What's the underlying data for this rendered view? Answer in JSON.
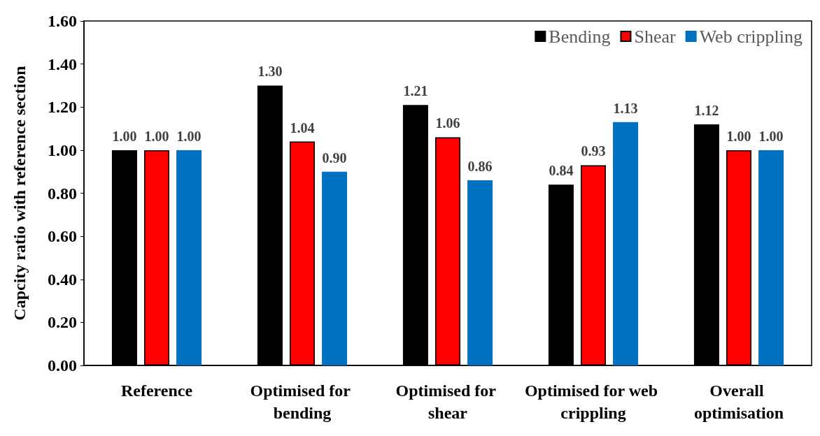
{
  "chart_data": {
    "type": "bar",
    "ylabel": "Capcity ratio with reference section",
    "categories": [
      "Reference",
      "Optimised for bending",
      "Optimised for shear",
      "Optimised for web crippling",
      "Overall optimisation"
    ],
    "series": [
      {
        "name": "Bending",
        "color": "#000000",
        "values": [
          1.0,
          1.3,
          1.21,
          0.84,
          1.12
        ],
        "value_labels": [
          "1.00",
          "1.30",
          "1.21",
          "0.84",
          "1.12"
        ]
      },
      {
        "name": "Shear",
        "color": "#ff0000",
        "values": [
          1.0,
          1.04,
          1.06,
          0.93,
          1.0
        ],
        "value_labels": [
          "1.00",
          "1.04",
          "1.06",
          "0.93",
          "1.00"
        ]
      },
      {
        "name": "Web crippling",
        "color": "#0070c0",
        "values": [
          1.0,
          0.9,
          0.86,
          1.13,
          1.0
        ],
        "value_labels": [
          "1.00",
          "0.90",
          "0.86",
          "1.13",
          "1.00"
        ]
      }
    ],
    "ylim": [
      0,
      1.6
    ],
    "yticks": [
      {
        "value": 0,
        "label": "0.00"
      },
      {
        "value": 0.2,
        "label": "0.20"
      },
      {
        "value": 0.4,
        "label": "0.40"
      },
      {
        "value": 0.6,
        "label": "0.60"
      },
      {
        "value": 0.8,
        "label": "0.80"
      },
      {
        "value": 1.0,
        "label": "1.00"
      },
      {
        "value": 1.2,
        "label": "1.20"
      },
      {
        "value": 1.4,
        "label": "1.40"
      },
      {
        "value": 1.6,
        "label": "1.60"
      }
    ],
    "grid": false,
    "legend": "top right"
  }
}
